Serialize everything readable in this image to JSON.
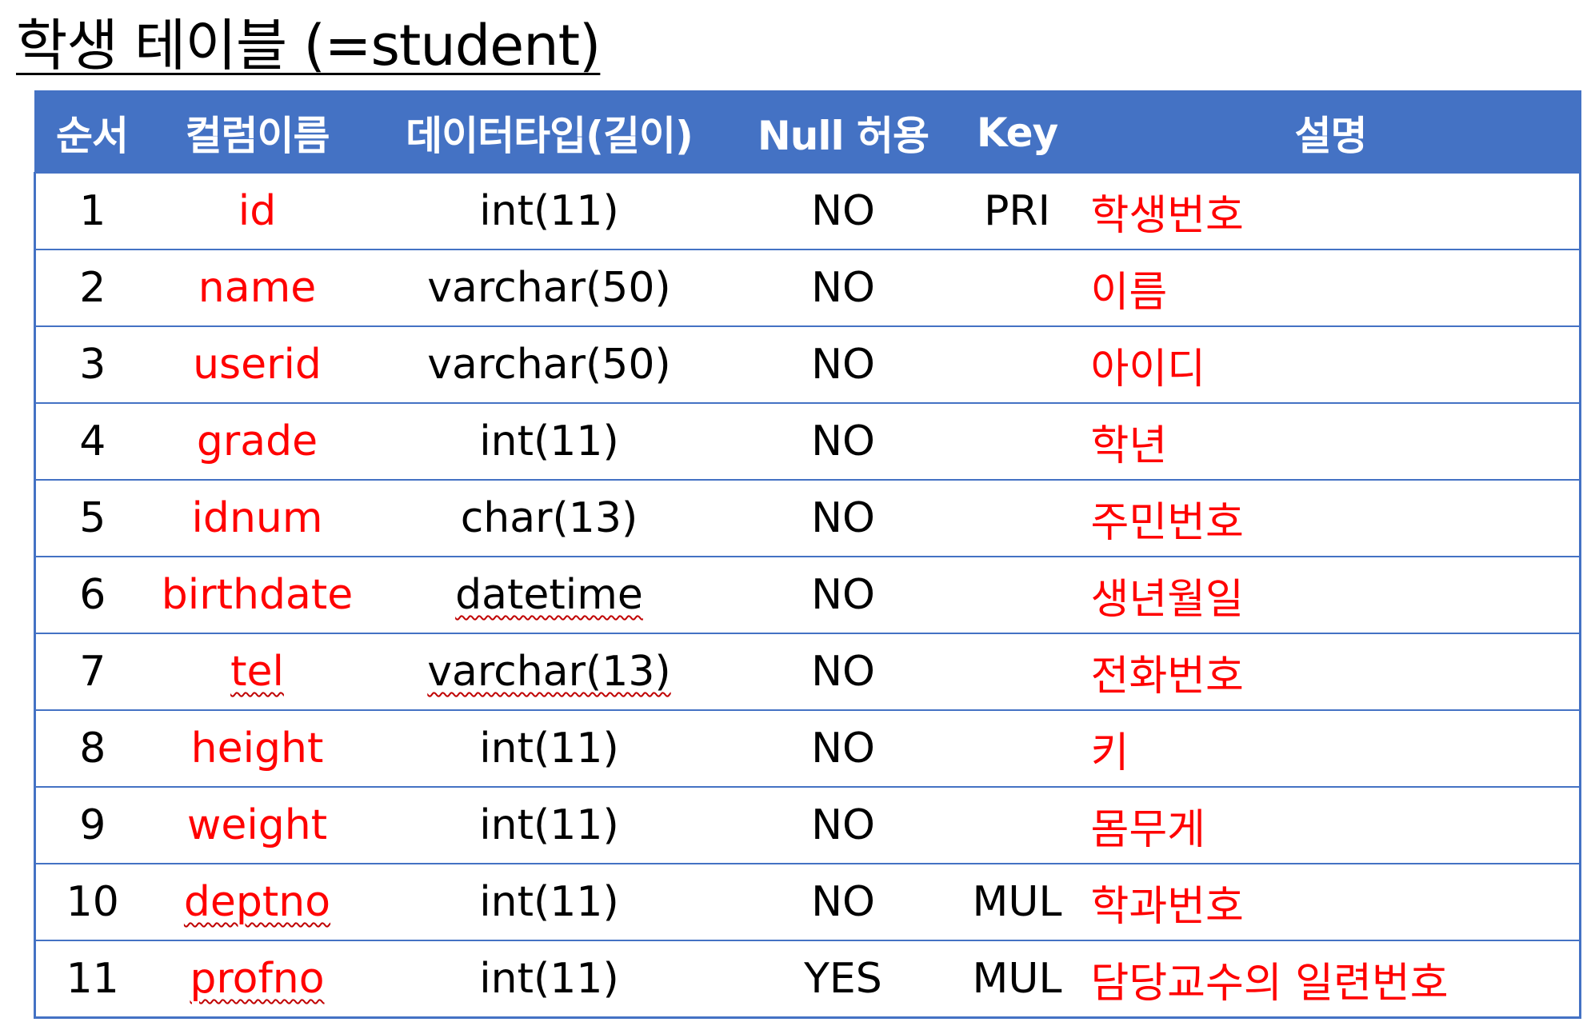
{
  "title": "학생 테이블 (=student)",
  "colors": {
    "header_bg": "#4472c4",
    "header_text": "#ffffff",
    "border": "#4472c4",
    "accent_text": "#ff0000",
    "body_text": "#000000"
  },
  "table": {
    "headers": {
      "order": "순서",
      "column_name": "컬럼이름",
      "data_type": "데이터타입(길이)",
      "nullable": "Null 허용",
      "key": "Key",
      "description": "설명"
    },
    "rows": [
      {
        "order": "1",
        "column_name": "id",
        "data_type": "int(11)",
        "nullable": "NO",
        "key": "PRI",
        "description": "학생번호"
      },
      {
        "order": "2",
        "column_name": "name",
        "data_type": "varchar(50)",
        "nullable": "NO",
        "key": "",
        "description": "이름"
      },
      {
        "order": "3",
        "column_name": "userid",
        "data_type": "varchar(50)",
        "nullable": "NO",
        "key": "",
        "description": "아이디"
      },
      {
        "order": "4",
        "column_name": "grade",
        "data_type": "int(11)",
        "nullable": "NO",
        "key": "",
        "description": "학년"
      },
      {
        "order": "5",
        "column_name": "idnum",
        "data_type": "char(13)",
        "nullable": "NO",
        "key": "",
        "description": "주민번호"
      },
      {
        "order": "6",
        "column_name": "birthdate",
        "data_type": "datetime",
        "nullable": "NO",
        "key": "",
        "description": "생년월일"
      },
      {
        "order": "7",
        "column_name": "tel",
        "data_type": "varchar(13)",
        "nullable": "NO",
        "key": "",
        "description": "전화번호"
      },
      {
        "order": "8",
        "column_name": "height",
        "data_type": "int(11)",
        "nullable": "NO",
        "key": "",
        "description": "키"
      },
      {
        "order": "9",
        "column_name": "weight",
        "data_type": "int(11)",
        "nullable": "NO",
        "key": "",
        "description": "몸무게"
      },
      {
        "order": "10",
        "column_name": "deptno",
        "data_type": "int(11)",
        "nullable": "NO",
        "key": "MUL",
        "description": "학과번호"
      },
      {
        "order": "11",
        "column_name": "profno",
        "data_type": "int(11)",
        "nullable": "YES",
        "key": "MUL",
        "description": "담당교수의 일련번호"
      }
    ]
  }
}
